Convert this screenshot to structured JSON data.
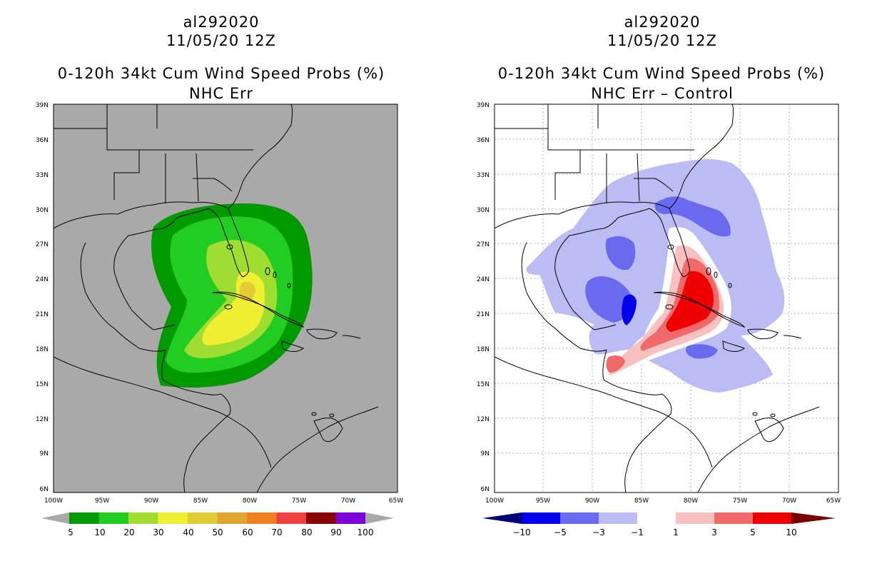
{
  "colors": {
    "left_background": "#a9a9a9",
    "right_background": "#ffffff",
    "coast": "#000000",
    "grid": "#b0b0b0"
  },
  "left_panel": {
    "storm_id": "al292020",
    "date": "11/05/20 12Z",
    "title": "0-120h 34kt Cum Wind Speed Probs (%)",
    "subtitle": "NHC Err",
    "y_ticks": [
      "39N",
      "36N",
      "33N",
      "30N",
      "27N",
      "24N",
      "21N",
      "18N",
      "15N",
      "12N",
      "9N",
      "6N"
    ],
    "x_ticks": [
      "100W",
      "95W",
      "90W",
      "85W",
      "80W",
      "75W",
      "70W",
      "65W"
    ],
    "legend": {
      "labels": [
        "5",
        "10",
        "20",
        "30",
        "40",
        "50",
        "60",
        "70",
        "80",
        "90",
        "100"
      ],
      "colors": [
        "#a9a9a9",
        "#009900",
        "#22cc22",
        "#9fdd33",
        "#f0ef33",
        "#e2cc33",
        "#e2a432",
        "#ee7f23",
        "#ef4040",
        "#8a0000",
        "#7a00d6",
        "#a9a9a9"
      ]
    },
    "probability_levels": [
      5,
      10,
      20,
      30,
      40
    ]
  },
  "right_panel": {
    "storm_id": "al292020",
    "date": "11/05/20 12Z",
    "title": "0-120h 34kt Cum Wind Speed Probs (%)",
    "subtitle": "NHC Err – Control",
    "y_ticks": [
      "39N",
      "36N",
      "33N",
      "30N",
      "27N",
      "24N",
      "21N",
      "18N",
      "15N",
      "12N",
      "9N",
      "6N"
    ],
    "x_ticks": [
      "100W",
      "95W",
      "90W",
      "85W",
      "80W",
      "75W",
      "70W",
      "65W"
    ],
    "legend": {
      "labels": [
        "−10",
        "−5",
        "−3",
        "−1",
        "1",
        "3",
        "5",
        "10"
      ],
      "colors": [
        "#00007a",
        "#0000ee",
        "#6a6aee",
        "#bcbcf4",
        "#ffffff",
        "#f8c0c0",
        "#f06a6a",
        "#ee0000",
        "#7a0000"
      ]
    },
    "difference_levels": [
      -10,
      -5,
      -3,
      -1,
      1,
      3,
      5,
      10
    ]
  }
}
